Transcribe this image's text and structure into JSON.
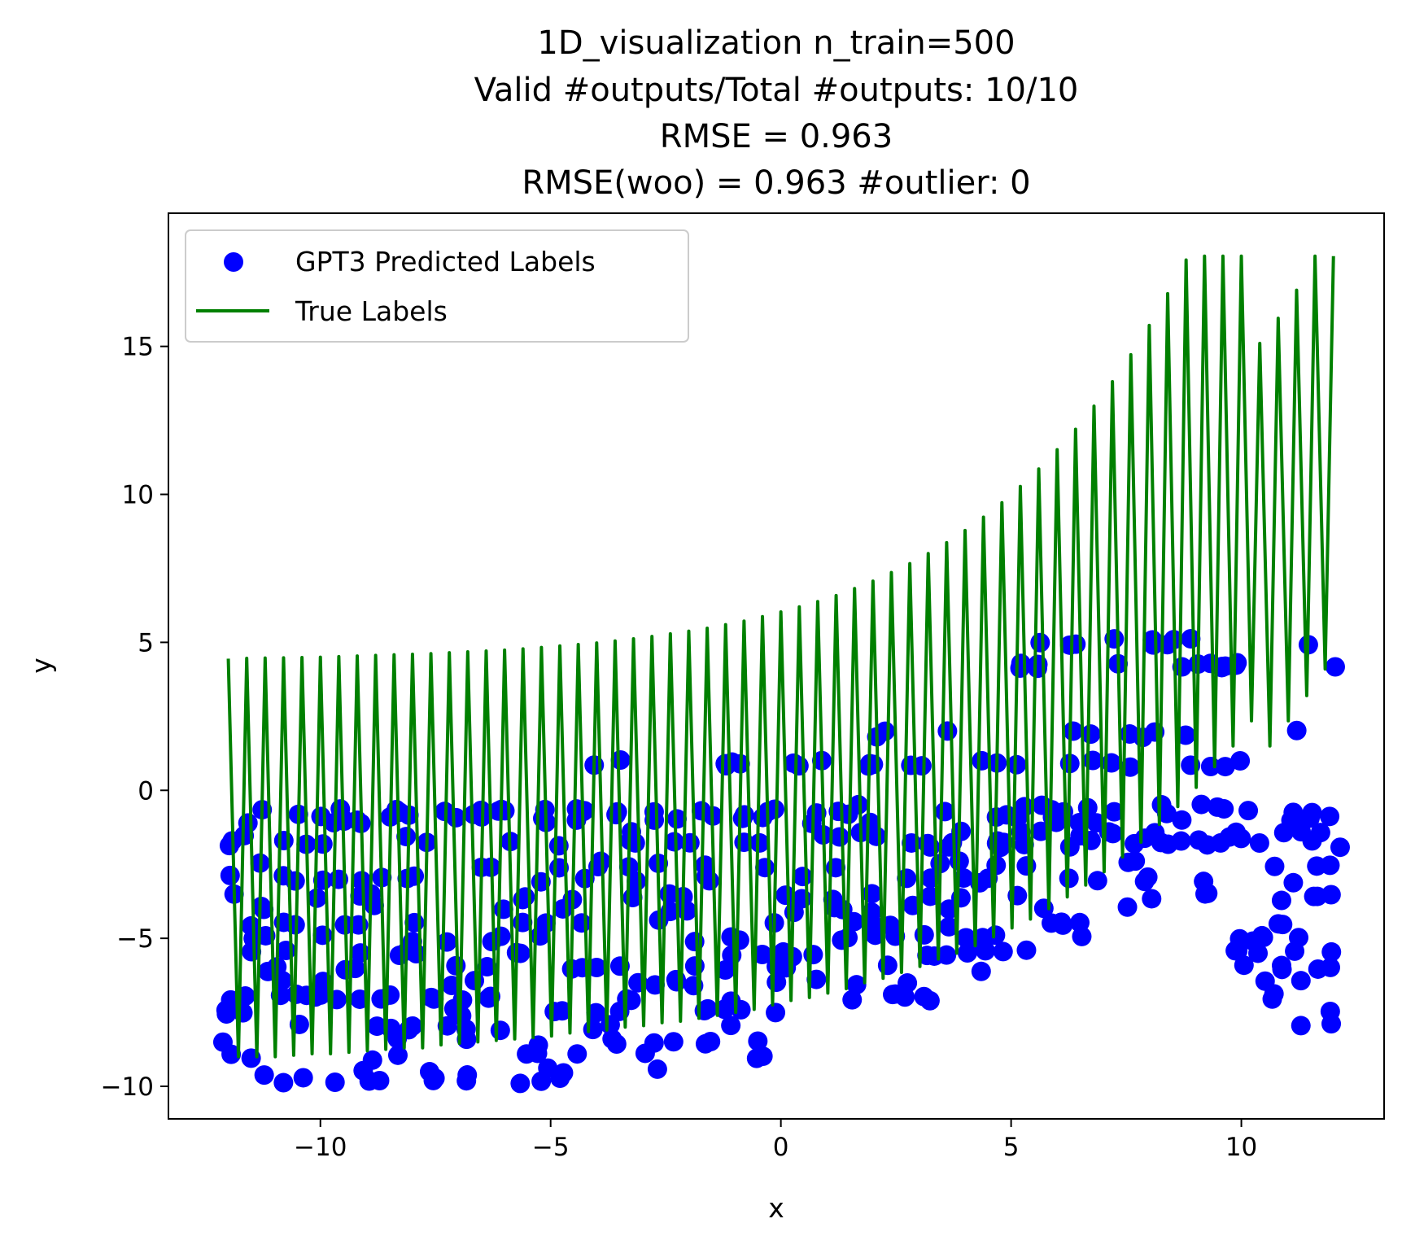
{
  "chart_data": {
    "type": "scatter",
    "title_lines": [
      "1D_visualization  n_train=500",
      "Valid #outputs/Total #outputs: 10/10",
      "RMSE      = 0.963",
      "RMSE(woo) = 0.963   #outlier: 0"
    ],
    "xlabel": "x",
    "ylabel": "y",
    "xlim": [
      -13.3,
      13.1
    ],
    "ylim": [
      -11.1,
      19.5
    ],
    "x_ticks": [
      -10,
      -5,
      0,
      5,
      10
    ],
    "x_tick_labels": [
      "−10",
      "−5",
      "0",
      "5",
      "10"
    ],
    "y_ticks": [
      -10,
      -5,
      0,
      5,
      10,
      15
    ],
    "y_tick_labels": [
      "−10",
      "−5",
      "0",
      "5",
      "10",
      "15"
    ],
    "grid": false,
    "legend_position": "upper-left",
    "series": [
      {
        "name": "GPT3 Predicted Labels",
        "kind": "scatter",
        "color": "#0000ff"
      },
      {
        "name": "True Labels",
        "kind": "line",
        "color": "#008000"
      }
    ],
    "true_labels": {
      "x": [
        -12.0,
        -11.6,
        -11.2,
        -10.8,
        -10.4,
        -10.0,
        -9.6,
        -9.2,
        -8.8,
        -8.4,
        -8.0,
        -7.6,
        -7.2,
        -6.8,
        -6.4,
        -6.0,
        -5.6,
        -5.2,
        -4.8,
        -4.4,
        -4.0,
        -3.6,
        -3.2,
        -2.8,
        -2.4,
        -2.0,
        -1.6,
        -1.2,
        -0.8,
        -0.4,
        0.0,
        0.4,
        0.8,
        1.2,
        1.6,
        2.0,
        2.4,
        2.8,
        3.2,
        3.6,
        4.0,
        4.4,
        4.8,
        5.2,
        5.6,
        6.0,
        6.4,
        6.8,
        7.2,
        7.6,
        8.0,
        8.4,
        8.8,
        9.2,
        9.6,
        10.0,
        10.4,
        10.8,
        11.2,
        11.6,
        12.0
      ],
      "y_high": [
        4.45,
        4.46,
        4.47,
        4.48,
        4.49,
        4.5,
        4.52,
        4.54,
        4.56,
        4.58,
        4.6,
        4.62,
        4.65,
        4.68,
        4.71,
        4.74,
        4.78,
        4.83,
        4.88,
        4.93,
        4.98,
        5.05,
        5.12,
        5.2,
        5.29,
        5.38,
        5.48,
        5.6,
        5.72,
        5.87,
        6.03,
        6.2,
        6.38,
        6.58,
        6.82,
        7.07,
        7.36,
        7.66,
        8.0,
        8.37,
        8.78,
        9.23,
        9.72,
        10.27,
        10.86,
        11.51,
        12.2,
        12.98,
        13.81,
        14.72,
        15.71,
        16.78,
        17.92,
        19.17,
        20.5,
        21.0,
        15.1,
        15.95,
        16.9,
        18.05,
        18.05
      ],
      "y_low": [
        -9.0,
        -9.0,
        -9.0,
        -8.95,
        -8.9,
        -8.9,
        -8.85,
        -8.8,
        -8.75,
        -8.7,
        -8.7,
        -8.6,
        -8.55,
        -8.5,
        -8.45,
        -8.4,
        -8.35,
        -8.3,
        -8.2,
        -8.15,
        -8.1,
        -8.0,
        -7.95,
        -7.85,
        -7.8,
        -7.7,
        -7.6,
        -7.5,
        -7.4,
        -7.25,
        -7.1,
        -7.0,
        -6.85,
        -6.7,
        -6.5,
        -6.35,
        -6.15,
        -5.95,
        -5.7,
        -5.5,
        -5.25,
        -4.95,
        -4.65,
        -4.35,
        -4.0,
        -3.6,
        -3.2,
        -2.75,
        -2.25,
        -1.75,
        -1.15,
        -0.55,
        0.1,
        0.8,
        1.5,
        2.35,
        1.5,
        2.35,
        3.2,
        4.1,
        4.4
      ]
    },
    "predicted_labels": {
      "note_levels": [
        5.0,
        4.2,
        1.9,
        0.9,
        -0.6,
        -0.8,
        -1.0,
        -1.5,
        -1.8,
        -2.5,
        -3.0,
        -3.6,
        -4.0,
        -4.5,
        -5.0,
        -5.5,
        -6.0,
        -6.5,
        -7.0,
        -7.5,
        -8.0,
        -8.5,
        -9.0,
        -9.5,
        -9.8
      ],
      "x_min": -12.0,
      "x_max": 12.0
    }
  }
}
